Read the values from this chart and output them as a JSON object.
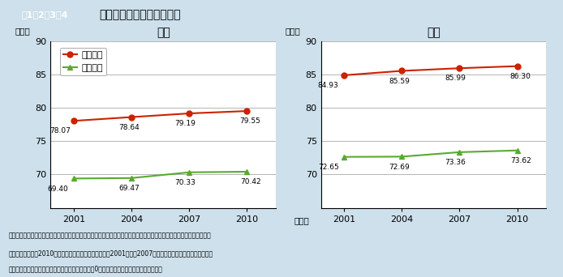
{
  "title_box": "図1－2－3－4",
  "title_main": "健康寸命と平均寸命の推移",
  "years": [
    2001,
    2004,
    2007,
    2010
  ],
  "male": {
    "title": "男性",
    "avg_life": [
      78.07,
      78.64,
      79.19,
      79.55
    ],
    "healthy_life": [
      69.4,
      69.47,
      70.33,
      70.42
    ]
  },
  "female": {
    "title": "女性",
    "avg_life": [
      84.93,
      85.59,
      85.99,
      86.3
    ],
    "healthy_life": [
      72.65,
      72.69,
      73.36,
      73.62
    ]
  },
  "legend_avg": "平均寸命",
  "legend_healthy": "健康寸命",
  "ylabel": "（年）",
  "xlabel": "（年）",
  "ylim": [
    65,
    90
  ],
  "yticks": [
    65,
    70,
    75,
    80,
    85,
    90
  ],
  "avg_color": "#cc2200",
  "healthy_color": "#5aaa30",
  "bg_color": "#cde0ec",
  "plot_bg": "#ffffff",
  "header_left_bg": "#6fa8c8",
  "header_right_bg": "#ddeeff",
  "note_line1": "資料：健康寸命は厚生労働科学研究費補助金「健康寸命における将来予測と生活習慣病対策の費用対効果に関する研究」",
  "note_line2": "　　　平均寸命の2010年は厚生労働省「完全生命表」、2001年から2007年までは厚生労働省「簡易生命表」",
  "note_line3": "（注）日常生活に制限のない期間が「健康寸命」、0歳の平均余命が「平均寸命」である。"
}
